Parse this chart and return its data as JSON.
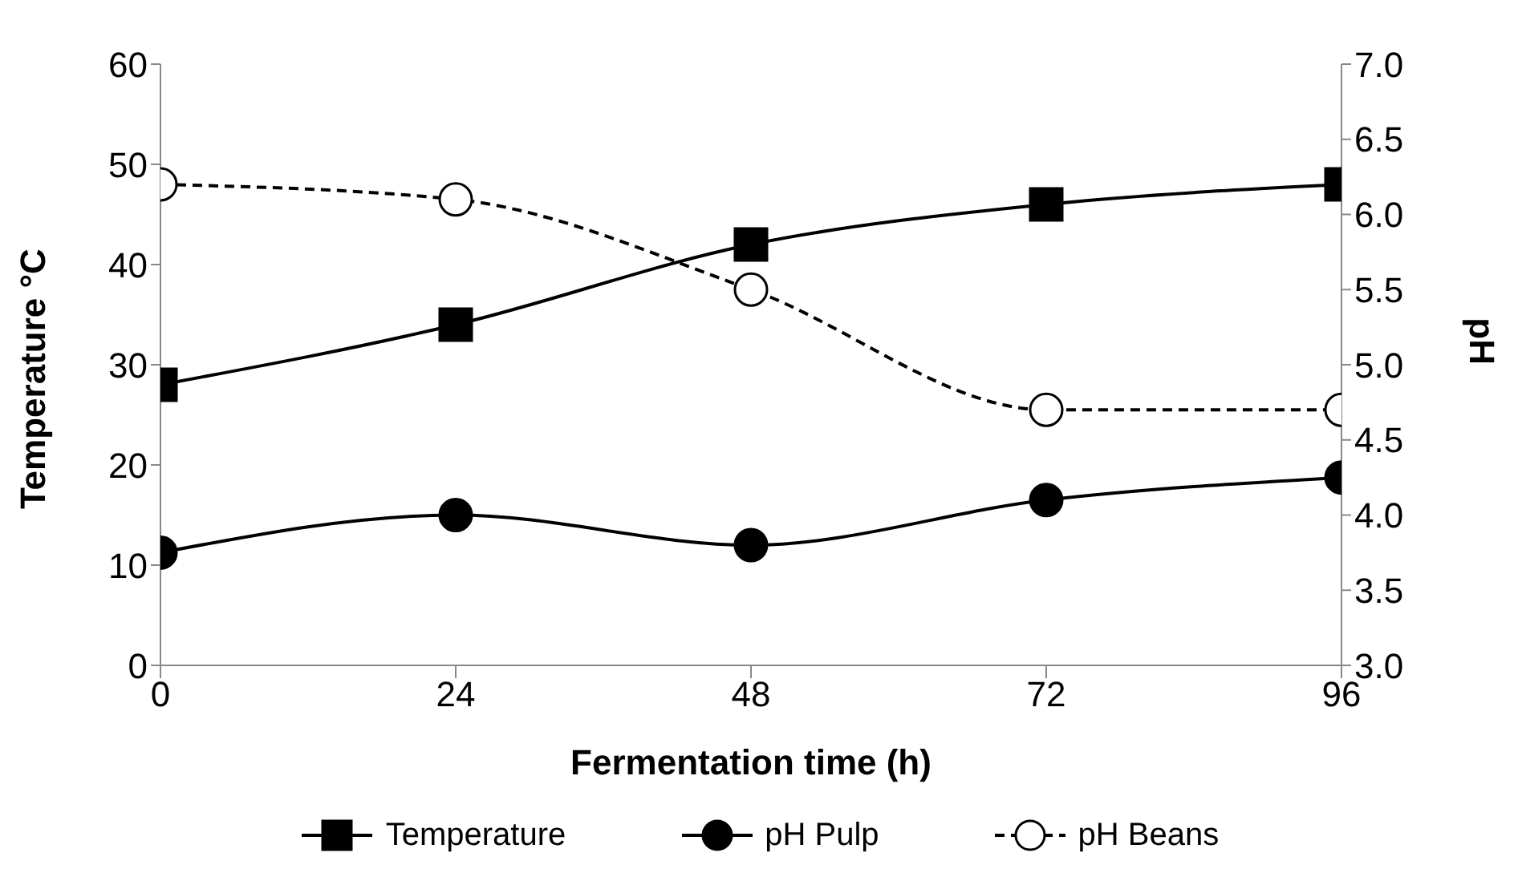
{
  "chart_data": {
    "type": "line",
    "xlabel": "Fermentation time (h)",
    "ylabel": "Temperature °C",
    "y2label": "pH",
    "x": [
      0,
      24,
      48,
      72,
      96
    ],
    "xlim": [
      0,
      96
    ],
    "xticks": [
      0,
      24,
      48,
      72,
      96
    ],
    "ylim": [
      0,
      60
    ],
    "yticks": [
      0,
      10,
      20,
      30,
      40,
      50,
      60
    ],
    "y2lim": [
      3.0,
      7.0
    ],
    "y2ticks": [
      {
        "value": 3,
        "label": "3.0"
      },
      {
        "value": 3.5,
        "label": "3.5"
      },
      {
        "value": 4,
        "label": "4.0"
      },
      {
        "value": 4.5,
        "label": "4.5"
      },
      {
        "value": 5,
        "label": "5.0"
      },
      {
        "value": 5.5,
        "label": "5.5"
      },
      {
        "value": 6,
        "label": "6.0"
      },
      {
        "value": 6.5,
        "label": "6.5"
      },
      {
        "value": 7,
        "label": "7.0"
      }
    ],
    "grid": false,
    "legend": "bottom",
    "series": [
      {
        "name": "Temperature",
        "color": "#000000",
        "values": [
          28,
          34,
          42,
          46,
          48
        ],
        "marker": "square",
        "line_style": "solid"
      },
      {
        "name": "pH Pulp",
        "color": "#000000",
        "values": [
          3.75,
          4.0,
          3.8,
          4.1,
          4.25
        ],
        "axis": "y2",
        "marker": "circle",
        "line_style": "solid"
      },
      {
        "name": "pH Beans",
        "color": "#000000",
        "values": [
          6.2,
          6.1,
          5.5,
          4.7,
          4.7
        ],
        "axis": "y2",
        "marker": "circle",
        "line_style": "dashed"
      }
    ]
  }
}
